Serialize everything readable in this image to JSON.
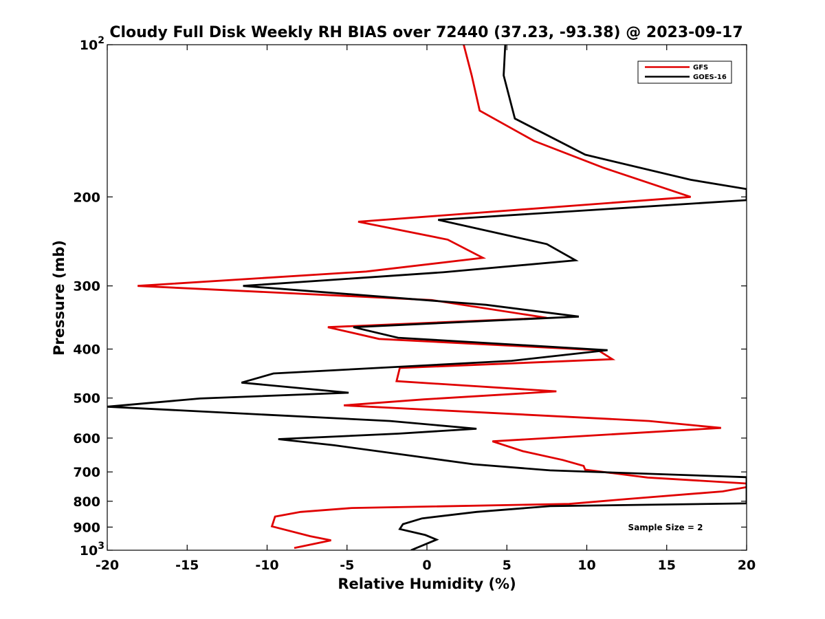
{
  "chart_data": {
    "type": "line",
    "title": "Cloudy Full Disk Weekly RH BIAS over 72440 (37.23, -93.38) @ 2023-09-17",
    "xlabel": "Relative Humidity (%)",
    "ylabel": "Pressure (mb)",
    "xlim": [
      -20,
      20
    ],
    "ylim": [
      100,
      1000
    ],
    "y_scale": "log",
    "y_reversed": true,
    "x_ticks": [
      "-20",
      "-15",
      "-10",
      "-5",
      "0",
      "5",
      "10",
      "15",
      "20"
    ],
    "y_ticks": [
      {
        "value": 100,
        "base": "10",
        "exp": "2"
      },
      {
        "value": 200,
        "label": "200"
      },
      {
        "value": 300,
        "label": "300"
      },
      {
        "value": 400,
        "label": "400"
      },
      {
        "value": 500,
        "label": "500"
      },
      {
        "value": 600,
        "label": "600"
      },
      {
        "value": 700,
        "label": "700"
      },
      {
        "value": 800,
        "label": "800"
      },
      {
        "value": 900,
        "label": "900"
      },
      {
        "value": 1000,
        "base": "10",
        "exp": "3"
      }
    ],
    "legend_position": "top-right",
    "annotation": "Sample Size = 2",
    "series": [
      {
        "name": "GFS",
        "color": "#e00000",
        "points": [
          [
            2.3,
            100
          ],
          [
            2.8,
            115
          ],
          [
            3.3,
            135
          ],
          [
            6.7,
            155
          ],
          [
            11,
            175
          ],
          [
            16.5,
            200
          ],
          [
            -4.3,
            224
          ],
          [
            1.3,
            243
          ],
          [
            3.5,
            264
          ],
          [
            -3.8,
            281
          ],
          [
            -18.1,
            300
          ],
          [
            0.3,
            320
          ],
          [
            7.5,
            347
          ],
          [
            -6.2,
            362
          ],
          [
            -3.0,
            382
          ],
          [
            10.7,
            402
          ],
          [
            11.6,
            419
          ],
          [
            -1.7,
            436
          ],
          [
            -1.9,
            463
          ],
          [
            8.1,
            485
          ],
          [
            -0.2,
            503
          ],
          [
            -5.2,
            517
          ],
          [
            13.9,
            555
          ],
          [
            18.4,
            573
          ],
          [
            4.1,
            609
          ],
          [
            6.0,
            637
          ],
          [
            8.5,
            663
          ],
          [
            9.8,
            681
          ],
          [
            9.9,
            693
          ],
          [
            13.8,
            718
          ],
          [
            20,
            738
          ],
          [
            20,
            750
          ],
          [
            18.5,
            765
          ],
          [
            12.5,
            792
          ],
          [
            8.9,
            810
          ],
          [
            -4.7,
            825
          ],
          [
            -7.9,
            840
          ],
          [
            -9.5,
            858
          ],
          [
            -9.7,
            897
          ],
          [
            -7.3,
            938
          ],
          [
            -6.0,
            956
          ],
          [
            -8.3,
            990
          ]
        ]
      },
      {
        "name": "GOES-16",
        "color": "#000000",
        "points": [
          [
            4.9,
            100
          ],
          [
            4.8,
            115
          ],
          [
            5.5,
            140
          ],
          [
            9.9,
            165
          ],
          [
            16.5,
            185
          ],
          [
            20,
            193
          ],
          [
            20,
            203
          ],
          [
            0.7,
            222
          ],
          [
            7.5,
            248
          ],
          [
            9.3,
            267
          ],
          [
            1.0,
            282
          ],
          [
            -11.5,
            300
          ],
          [
            3.7,
            327
          ],
          [
            9.5,
            345
          ],
          [
            -4.6,
            362
          ],
          [
            -1.8,
            380
          ],
          [
            11.3,
            402
          ],
          [
            5.3,
            422
          ],
          [
            -9.6,
            447
          ],
          [
            -11.6,
            466
          ],
          [
            -4.9,
            488
          ],
          [
            -14.2,
            501
          ],
          [
            -20,
            520
          ],
          [
            -2.3,
            555
          ],
          [
            3.1,
            575
          ],
          [
            -1.8,
            588
          ],
          [
            -9.3,
            603
          ],
          [
            -5.8,
            620
          ],
          [
            -0.7,
            652
          ],
          [
            2.9,
            676
          ],
          [
            7.7,
            695
          ],
          [
            20,
            717
          ],
          [
            20,
            808
          ],
          [
            7.7,
            818
          ],
          [
            3.1,
            840
          ],
          [
            -0.3,
            865
          ],
          [
            -1.5,
            888
          ],
          [
            -1.7,
            908
          ],
          [
            -0.1,
            933
          ],
          [
            0.6,
            953
          ],
          [
            -1.0,
            1000
          ]
        ]
      }
    ]
  }
}
